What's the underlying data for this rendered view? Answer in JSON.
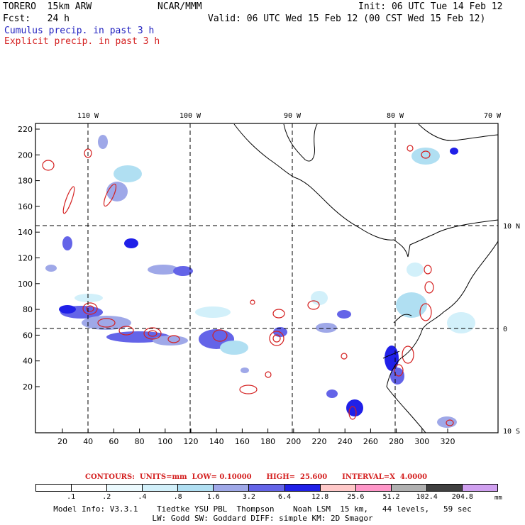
{
  "header": {
    "model": "TORERO  15km ARW",
    "org": "NCAR/MMM",
    "init": "Init: 06 UTC Tue 14 Feb 12",
    "fcst": "Fcst:   24 h",
    "valid": "Valid: 06 UTC Wed 15 Feb 12 (00 CST Wed 15 Feb 12)",
    "cumulus_label": "Cumulus precip. in past 3 h",
    "explicit_label": "Explicit precip. in past 3 h"
  },
  "map": {
    "lon_labels": [
      "110 W",
      "100 W",
      "90 W",
      "80 W",
      "70 W"
    ],
    "lat_labels": [
      "10 N",
      "0",
      "10 S"
    ],
    "x_ticks": [
      "20",
      "40",
      "60",
      "80",
      "100",
      "120",
      "140",
      "160",
      "180",
      "200",
      "220",
      "240",
      "260",
      "280",
      "300",
      "320"
    ],
    "y_ticks": [
      "220",
      "200",
      "180",
      "160",
      "140",
      "120",
      "100",
      "80",
      "60",
      "40",
      "20"
    ],
    "colors": {
      "cumulus": "#1f1fbf",
      "explicit": "#d42020",
      "frame": "#000000"
    }
  },
  "legend": {
    "contours_text": "CONTOURS:  UNITS=mm  LOW= 0.10000      HIGH=  25.600      INTERVAL=X  4.0000",
    "units": "mm",
    "labels": [
      ".1",
      ".2",
      ".4",
      ".8",
      "1.6",
      "3.2",
      "6.4",
      "12.8",
      "25.6",
      "51.2",
      "102.4",
      "204.8"
    ],
    "colors": [
      "#ffffff",
      "#ffffff",
      "#ecfafe",
      "#d2f0fa",
      "#b0dff2",
      "#9fa8e8",
      "#6464e8",
      "#2020e8",
      "#ffc8c8",
      "#ff96c8",
      "#b0b0b0",
      "#404040",
      "#d0a0f0"
    ]
  },
  "model_info": {
    "line1": "Model Info: V3.3.1    Tiedtke YSU PBL  Thompson    Noah LSM  15 km,   44 levels,   59 sec",
    "line2": "LW: Godd SW: Goddard DIFF: simple KM: 2D Smagor"
  }
}
